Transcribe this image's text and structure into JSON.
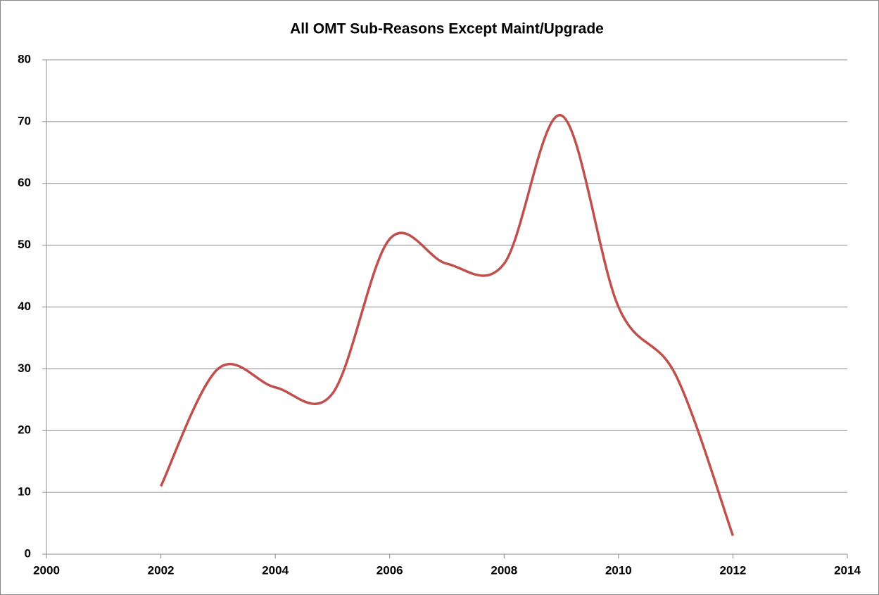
{
  "chart_data": {
    "type": "line",
    "title": "All OMT Sub-Reasons Except Maint/Upgrade",
    "x": [
      2002,
      2003,
      2004,
      2005,
      2006,
      2007,
      2008,
      2009,
      2010,
      2011,
      2012
    ],
    "series": [
      {
        "color": "#c0504d",
        "values": [
          11,
          30,
          27,
          26,
          51,
          47,
          47,
          71,
          40,
          29,
          3
        ]
      }
    ],
    "xlim": [
      2000,
      2014
    ],
    "xticks": [
      2000,
      2002,
      2004,
      2006,
      2008,
      2010,
      2012,
      2014
    ],
    "ylim": [
      0,
      80
    ],
    "yticks": [
      0,
      10,
      20,
      30,
      40,
      50,
      60,
      70,
      80
    ],
    "grid": true,
    "smooth": true
  }
}
